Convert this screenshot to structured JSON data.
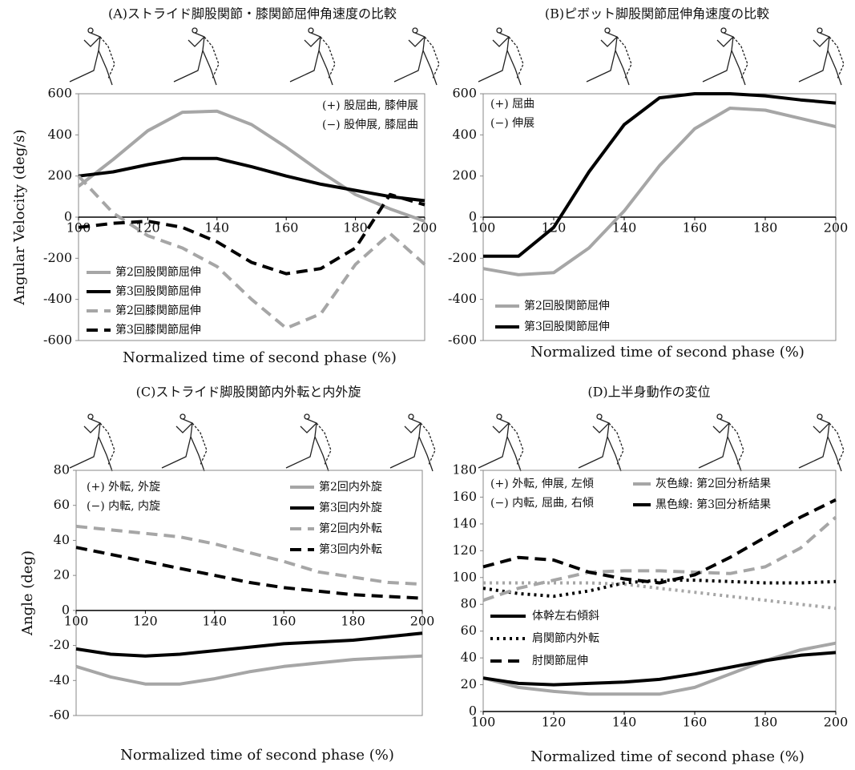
{
  "chart_data": [
    {
      "type": "line",
      "title": "(A)ストライド脚股関節・膝関節屈伸角速度の比較",
      "ylabel": "Angular Velocity (deg/s)",
      "xlabel": "Normalized time of second phase (%)",
      "x": [
        100,
        110,
        120,
        130,
        140,
        150,
        160,
        170,
        180,
        190,
        200
      ],
      "xlim": [
        100,
        200
      ],
      "xticks": [
        100,
        120,
        140,
        160,
        180,
        200
      ],
      "ylim": [
        -600,
        600
      ],
      "yticks": [
        -600,
        -400,
        -200,
        0,
        200,
        400,
        600
      ],
      "annotations": [
        "(+) 股屈曲, 膝伸展",
        "(−) 股伸展, 膝屈曲"
      ],
      "legend": "lower left",
      "series": [
        {
          "name": "第2回股関節屈伸",
          "color": "#a6a6a6",
          "dash": "solid",
          "values": [
            150,
            280,
            420,
            510,
            515,
            450,
            340,
            220,
            110,
            40,
            -20
          ]
        },
        {
          "name": "第3回股関節屈伸",
          "color": "#000000",
          "dash": "solid",
          "values": [
            200,
            220,
            255,
            285,
            285,
            245,
            200,
            160,
            130,
            100,
            80
          ]
        },
        {
          "name": "第2回膝関節屈伸",
          "color": "#a6a6a6",
          "dash": "dashed",
          "values": [
            200,
            20,
            -90,
            -150,
            -240,
            -400,
            -540,
            -470,
            -230,
            -80,
            -230
          ]
        },
        {
          "name": "第3回膝関節屈伸",
          "color": "#000000",
          "dash": "dashed",
          "values": [
            -50,
            -30,
            -20,
            -50,
            -120,
            -220,
            -275,
            -250,
            -150,
            110,
            60
          ]
        }
      ]
    },
    {
      "type": "line",
      "title": "(B)ピボット脚股関節屈伸角速度の比較",
      "xlabel": "Normalized time of second phase (%)",
      "x": [
        100,
        110,
        120,
        130,
        140,
        150,
        160,
        170,
        180,
        190,
        200
      ],
      "xlim": [
        100,
        200
      ],
      "xticks": [
        100,
        120,
        140,
        160,
        180,
        200
      ],
      "ylim": [
        -600,
        600
      ],
      "yticks": [
        -600,
        -400,
        -200,
        0,
        200,
        400,
        600
      ],
      "annotations": [
        "(+) 屈曲",
        "(−) 伸展"
      ],
      "legend": "lower left",
      "series": [
        {
          "name": "第2回股関節屈伸",
          "color": "#a6a6a6",
          "dash": "solid",
          "values": [
            -250,
            -280,
            -270,
            -150,
            30,
            250,
            430,
            530,
            520,
            480,
            440
          ]
        },
        {
          "name": "第3回股関節屈伸",
          "color": "#000000",
          "dash": "solid",
          "values": [
            -190,
            -190,
            -50,
            220,
            450,
            580,
            600,
            600,
            590,
            570,
            555
          ]
        }
      ]
    },
    {
      "type": "line",
      "title": "(C)ストライド脚股関節内外転と内外旋",
      "ylabel": "Angle (deg)",
      "xlabel": "Normalized time of second phase (%)",
      "x": [
        100,
        110,
        120,
        130,
        140,
        150,
        160,
        170,
        180,
        190,
        200
      ],
      "xlim": [
        100,
        200
      ],
      "xticks": [
        100,
        120,
        140,
        160,
        180,
        200
      ],
      "ylim": [
        -60,
        80
      ],
      "yticks": [
        -60,
        -40,
        -20,
        0,
        20,
        40,
        60,
        80
      ],
      "annotations": [
        "(+) 外転, 外旋",
        "(−) 内転, 内旋"
      ],
      "legend": "upper right",
      "series": [
        {
          "name": "第2回内外旋",
          "color": "#a6a6a6",
          "dash": "solid",
          "values": [
            -32,
            -38,
            -42,
            -42,
            -39,
            -35,
            -32,
            -30,
            -28,
            -27,
            -26
          ]
        },
        {
          "name": "第3回内外旋",
          "color": "#000000",
          "dash": "solid",
          "values": [
            -22,
            -25,
            -26,
            -25,
            -23,
            -21,
            -19,
            -18,
            -17,
            -15,
            -13
          ]
        },
        {
          "name": "第2回内外転",
          "color": "#a6a6a6",
          "dash": "dashed",
          "values": [
            48,
            46,
            44,
            42,
            38,
            33,
            28,
            22,
            19,
            16,
            15
          ]
        },
        {
          "name": "第3回内外転",
          "color": "#000000",
          "dash": "dashed",
          "values": [
            36,
            32,
            28,
            24,
            20,
            16,
            13,
            11,
            9,
            8,
            7
          ]
        }
      ]
    },
    {
      "type": "line",
      "title": "(D)上半身動作の変位",
      "xlabel": "Normalized time of second phase (%)",
      "x": [
        100,
        110,
        120,
        130,
        140,
        150,
        160,
        170,
        180,
        190,
        200
      ],
      "xlim": [
        100,
        200
      ],
      "xticks": [
        100,
        120,
        140,
        160,
        180,
        200
      ],
      "ylim": [
        0,
        180
      ],
      "yticks": [
        0,
        20,
        40,
        60,
        80,
        100,
        120,
        140,
        160,
        180
      ],
      "annotations": [
        "(+) 外転, 伸展, 左傾",
        "(−) 内転, 屈曲, 右傾"
      ],
      "legend_styles": [
        {
          "label": "体幹左右傾斜",
          "dash": "solid"
        },
        {
          "label": "肩関節内外転",
          "dash": "dotted"
        },
        {
          "label": "肘関節屈伸",
          "dash": "dashed"
        }
      ],
      "legend_colors": [
        {
          "label": "灰色線: 第2回分析結果",
          "color": "#a6a6a6"
        },
        {
          "label": "黒色線: 第3回分析結果",
          "color": "#000000"
        }
      ],
      "series": [
        {
          "color": "#a6a6a6",
          "dash": "solid",
          "values": [
            25,
            18,
            15,
            13,
            13,
            13,
            18,
            28,
            38,
            46,
            51
          ]
        },
        {
          "color": "#000000",
          "dash": "solid",
          "values": [
            25,
            21,
            20,
            21,
            22,
            24,
            28,
            33,
            38,
            42,
            44
          ]
        },
        {
          "color": "#a6a6a6",
          "dash": "dotted",
          "values": [
            96,
            96,
            96,
            96,
            95,
            92,
            89,
            86,
            83,
            80,
            77
          ]
        },
        {
          "color": "#000000",
          "dash": "dotted",
          "values": [
            92,
            88,
            86,
            90,
            96,
            98,
            98,
            97,
            96,
            96,
            97
          ]
        },
        {
          "color": "#a6a6a6",
          "dash": "dashed",
          "values": [
            83,
            92,
            98,
            104,
            105,
            105,
            104,
            103,
            108,
            122,
            145
          ]
        },
        {
          "color": "#000000",
          "dash": "dashed",
          "values": [
            108,
            115,
            113,
            104,
            99,
            96,
            102,
            115,
            130,
            145,
            158
          ]
        }
      ]
    }
  ]
}
